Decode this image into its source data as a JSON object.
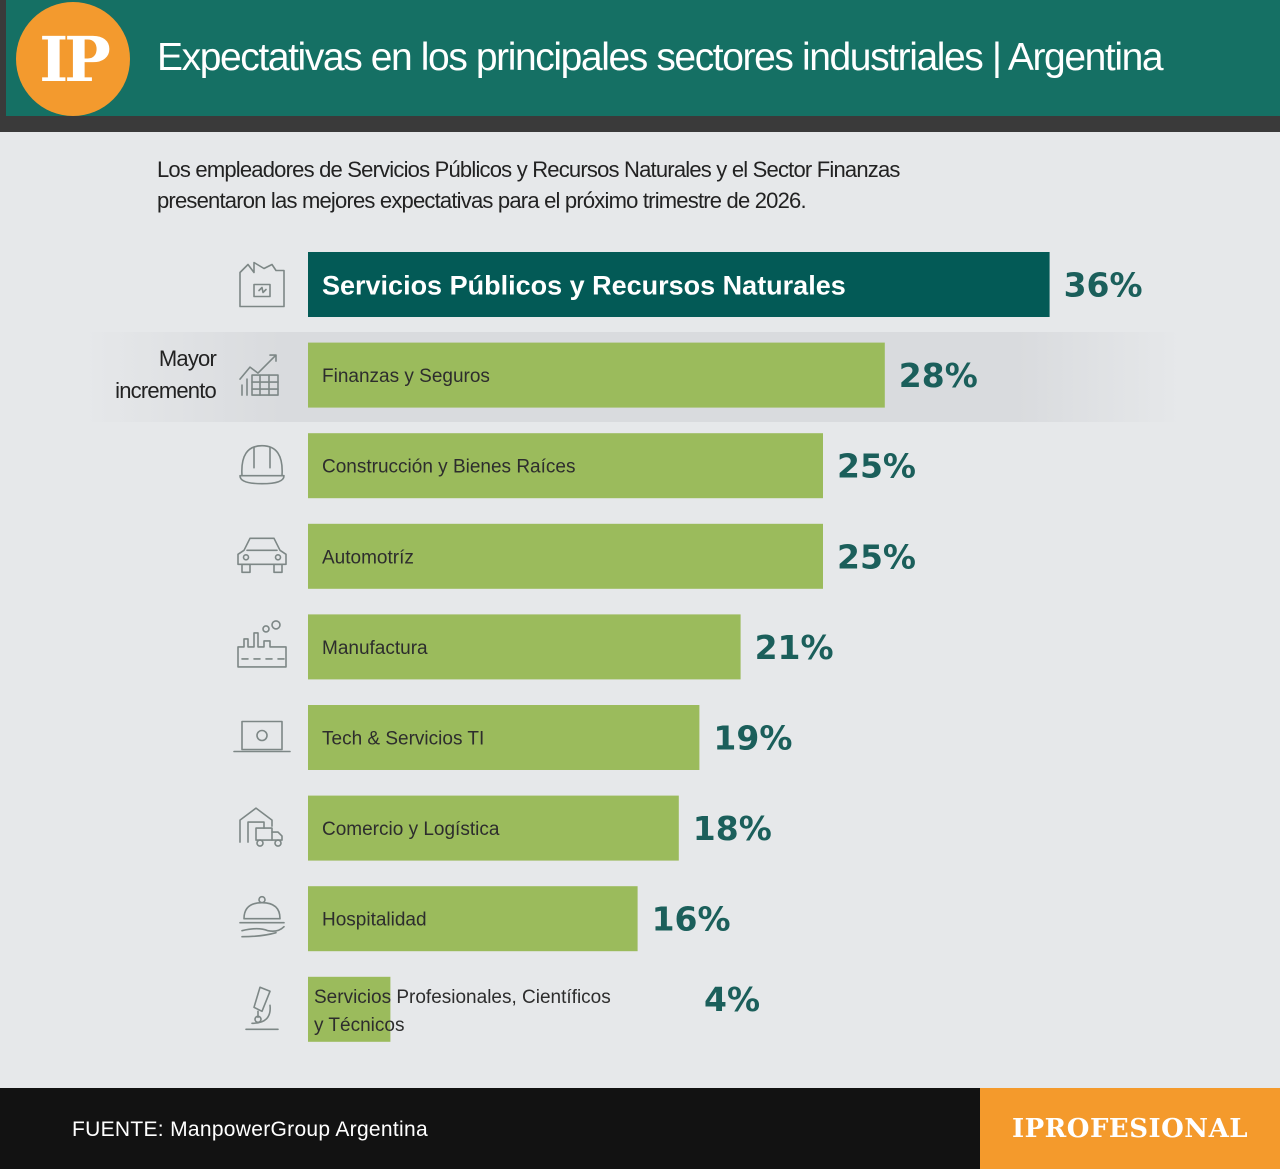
{
  "header": {
    "logo_text": "IP",
    "title": "Expectativas en los principales sectores industriales | Argentina"
  },
  "subtitle": "Los empleadores de Servicios Públicos y Recursos Naturales y el Sector Finanzas presentaron las mejores expectativas para el próximo trimestre de 2026.",
  "annotation": {
    "text": "Mayor incremento"
  },
  "footer": {
    "source": "FUENTE: ManpowerGroup Argentina",
    "brand": "IPROFESIONAL"
  },
  "colors": {
    "highlight_bar": "#035a56",
    "bar": "#9bbb5c",
    "value_text": "#1b5f5b",
    "header": "#157064",
    "accent": "#f39a2e"
  },
  "chart_data": {
    "type": "bar",
    "orientation": "horizontal",
    "categories": [
      "Servicios Públicos y Recursos Naturales",
      "Finanzas y Seguros",
      "Construcción y Bienes Raíces",
      "Automotríz",
      "Manufactura",
      "Tech & Servicios TI",
      "Comercio y Logística",
      "Hospitalidad",
      "Servicios Profesionales, Científicos y Técnicos"
    ],
    "values": [
      36,
      28,
      25,
      25,
      21,
      19,
      18,
      16,
      4
    ],
    "value_labels": [
      "36%",
      "28%",
      "25%",
      "25%",
      "21%",
      "19%",
      "18%",
      "16%",
      "4%"
    ],
    "icons": [
      "factory-energy-icon",
      "finance-chart-icon",
      "hard-hat-icon",
      "car-icon",
      "manufacturing-icon",
      "laptop-icon",
      "warehouse-truck-icon",
      "cloche-service-icon",
      "microscope-icon"
    ],
    "highlighted": [
      true,
      false,
      false,
      false,
      false,
      false,
      false,
      false,
      false
    ],
    "title": "",
    "xlabel": "",
    "ylabel": ""
  }
}
